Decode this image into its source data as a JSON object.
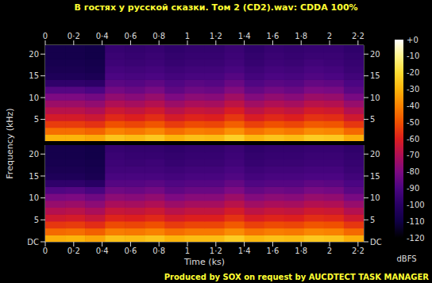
{
  "chart_data": {
    "type": "heatmap",
    "title": "В гостях у русской сказки. Том 2 (CD2).wav: CDDA 100%",
    "x_label": "Time (ks)",
    "y_label": "Frequency (kHz)",
    "xlim": [
      0,
      2.24
    ],
    "xticks": [
      {
        "value": 0,
        "label": "0"
      },
      {
        "value": 0.2,
        "label": "0·2"
      },
      {
        "value": 0.4,
        "label": "0·4"
      },
      {
        "value": 0.6,
        "label": "0·6"
      },
      {
        "value": 0.8,
        "label": "0·8"
      },
      {
        "value": 1,
        "label": "1"
      },
      {
        "value": 1.2,
        "label": "1·2"
      },
      {
        "value": 1.4,
        "label": "1·4"
      },
      {
        "value": 1.6,
        "label": "1·6"
      },
      {
        "value": 1.8,
        "label": "1·8"
      },
      {
        "value": 2,
        "label": "2"
      },
      {
        "value": 2.2,
        "label": "2·2"
      }
    ],
    "ylim": [
      0,
      22.05
    ],
    "x": [
      0.07,
      0.21,
      0.35,
      0.49,
      0.63,
      0.77,
      0.91,
      1.05,
      1.19,
      1.33,
      1.47,
      1.61,
      1.75,
      1.89,
      2.03,
      2.17
    ],
    "y": [
      0.7875,
      2.3625,
      3.9375,
      5.5125,
      7.0875,
      8.6625,
      10.2375,
      11.8125,
      13.3875,
      14.9625,
      16.5375,
      18.1125,
      19.6875,
      21.2625
    ],
    "panels": [
      {
        "yticks": [
          5,
          10,
          15,
          20
        ],
        "cells": [
          [
            -30,
            -30,
            -32,
            -26,
            -28,
            -25,
            -30,
            -27,
            -28,
            -23,
            -29,
            -26,
            -28,
            -24,
            -25,
            -31
          ],
          [
            -44,
            -44,
            -46,
            -40,
            -42,
            -39,
            -44,
            -41,
            -42,
            -37,
            -43,
            -40,
            -42,
            -38,
            -39,
            -45
          ],
          [
            -54,
            -54,
            -56,
            -50,
            -52,
            -49,
            -54,
            -51,
            -52,
            -47,
            -53,
            -50,
            -52,
            -48,
            -49,
            -55
          ],
          [
            -62,
            -62,
            -64,
            -58,
            -60,
            -57,
            -62,
            -59,
            -60,
            -55,
            -61,
            -58,
            -60,
            -56,
            -57,
            -63
          ],
          [
            -68,
            -68,
            -70,
            -64,
            -66,
            -63,
            -68,
            -65,
            -66,
            -61,
            -67,
            -64,
            -66,
            -62,
            -63,
            -69
          ],
          [
            -74,
            -74,
            -76,
            -70,
            -72,
            -69,
            -74,
            -71,
            -72,
            -67,
            -73,
            -70,
            -72,
            -68,
            -69,
            -75
          ],
          [
            -80,
            -80,
            -82,
            -76,
            -78,
            -75,
            -80,
            -77,
            -78,
            -73,
            -79,
            -76,
            -78,
            -74,
            -75,
            -81
          ],
          [
            -88,
            -88,
            -90,
            -82,
            -84,
            -81,
            -86,
            -83,
            -84,
            -79,
            -85,
            -82,
            -84,
            -80,
            -81,
            -87
          ],
          [
            -98,
            -98,
            -99,
            -87,
            -88,
            -86,
            -89,
            -87,
            -88,
            -84,
            -89,
            -87,
            -88,
            -85,
            -86,
            -90
          ],
          [
            -104,
            -104,
            -105,
            -90,
            -91,
            -90,
            -92,
            -91,
            -91,
            -88,
            -92,
            -90,
            -91,
            -89,
            -90,
            -93
          ],
          [
            -106,
            -106,
            -107,
            -92,
            -93,
            -92,
            -94,
            -93,
            -93,
            -91,
            -94,
            -92,
            -93,
            -91,
            -92,
            -95
          ],
          [
            -107,
            -107,
            -108,
            -94,
            -95,
            -94,
            -96,
            -95,
            -95,
            -93,
            -96,
            -94,
            -95,
            -93,
            -94,
            -96
          ],
          [
            -108,
            -108,
            -109,
            -95,
            -96,
            -95,
            -97,
            -96,
            -96,
            -94,
            -97,
            -95,
            -96,
            -95,
            -95,
            -97
          ],
          [
            -108,
            -108,
            -109,
            -96,
            -97,
            -96,
            -98,
            -97,
            -97,
            -95,
            -98,
            -96,
            -97,
            -96,
            -96,
            -98
          ]
        ]
      },
      {
        "yticks": [
          {
            "value": 0,
            "label": "DC"
          },
          5,
          10,
          15,
          20
        ],
        "cells": [
          [
            -31,
            -30,
            -33,
            -27,
            -28,
            -26,
            -30,
            -28,
            -28,
            -24,
            -29,
            -27,
            -28,
            -25,
            -26,
            -31
          ],
          [
            -45,
            -44,
            -47,
            -41,
            -42,
            -40,
            -44,
            -42,
            -42,
            -38,
            -43,
            -41,
            -42,
            -39,
            -40,
            -45
          ],
          [
            -55,
            -54,
            -57,
            -51,
            -52,
            -50,
            -54,
            -52,
            -52,
            -48,
            -53,
            -51,
            -52,
            -49,
            -50,
            -55
          ],
          [
            -63,
            -62,
            -65,
            -59,
            -60,
            -58,
            -62,
            -60,
            -60,
            -56,
            -61,
            -59,
            -60,
            -57,
            -58,
            -63
          ],
          [
            -69,
            -68,
            -71,
            -65,
            -66,
            -64,
            -68,
            -66,
            -66,
            -62,
            -67,
            -65,
            -66,
            -63,
            -64,
            -69
          ],
          [
            -75,
            -74,
            -77,
            -71,
            -72,
            -70,
            -74,
            -72,
            -72,
            -68,
            -73,
            -71,
            -72,
            -69,
            -70,
            -75
          ],
          [
            -81,
            -80,
            -83,
            -77,
            -78,
            -76,
            -80,
            -78,
            -78,
            -74,
            -79,
            -77,
            -78,
            -75,
            -76,
            -81
          ],
          [
            -89,
            -88,
            -91,
            -83,
            -84,
            -82,
            -86,
            -84,
            -84,
            -80,
            -85,
            -83,
            -84,
            -81,
            -82,
            -87
          ],
          [
            -98,
            -98,
            -100,
            -88,
            -88,
            -87,
            -89,
            -88,
            -88,
            -85,
            -89,
            -88,
            -88,
            -86,
            -87,
            -90
          ],
          [
            -104,
            -104,
            -106,
            -91,
            -91,
            -91,
            -92,
            -91,
            -91,
            -89,
            -92,
            -91,
            -91,
            -90,
            -90,
            -93
          ],
          [
            -106,
            -106,
            -107,
            -93,
            -93,
            -93,
            -94,
            -93,
            -93,
            -91,
            -94,
            -93,
            -93,
            -92,
            -92,
            -95
          ],
          [
            -107,
            -107,
            -108,
            -94,
            -95,
            -94,
            -96,
            -95,
            -95,
            -93,
            -96,
            -95,
            -95,
            -94,
            -94,
            -96
          ],
          [
            -108,
            -108,
            -109,
            -95,
            -96,
            -96,
            -97,
            -96,
            -96,
            -94,
            -97,
            -96,
            -96,
            -95,
            -95,
            -97
          ],
          [
            -108,
            -108,
            -109,
            -96,
            -97,
            -97,
            -98,
            -97,
            -97,
            -95,
            -98,
            -97,
            -97,
            -96,
            -96,
            -98
          ]
        ]
      }
    ],
    "colorbar": {
      "range": [
        -120,
        0
      ],
      "ticks": [
        {
          "value": 0,
          "label": "+0"
        },
        -10,
        -20,
        -30,
        -40,
        -50,
        -60,
        -70,
        -80,
        -90,
        -100,
        -110,
        -120
      ],
      "label": "dBFS"
    },
    "footer": "Produced by SOX on request by AUCDTECT TASK MANAGER"
  }
}
